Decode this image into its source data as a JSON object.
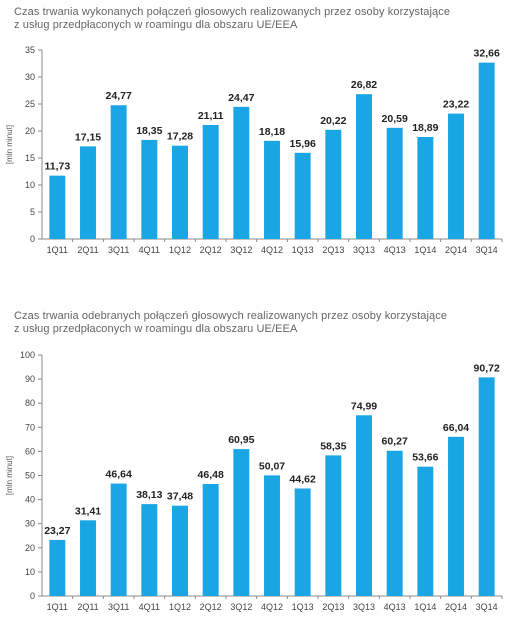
{
  "colors": {
    "bar": "#1aa6e4",
    "axis": "#888888",
    "text": "#444444"
  },
  "chart_data": [
    {
      "type": "bar",
      "title": "Czas trwania wykonanych połączeń głosowych realizowanych przez osoby korzystające\nz usług przedpłaconych w roamingu dla obszaru UE/EEA",
      "xlabel": "",
      "ylabel": "[mln minut]",
      "categories": [
        "1Q11",
        "2Q11",
        "3Q11",
        "4Q11",
        "1Q12",
        "2Q12",
        "3Q12",
        "4Q12",
        "1Q13",
        "2Q13",
        "3Q13",
        "4Q13",
        "1Q14",
        "2Q14",
        "3Q14"
      ],
      "values": [
        11.73,
        17.15,
        24.77,
        18.35,
        17.28,
        21.11,
        24.47,
        18.18,
        15.96,
        20.22,
        26.82,
        20.59,
        18.89,
        23.22,
        32.66
      ],
      "value_labels": [
        "11,73",
        "17,15",
        "24,77",
        "18,35",
        "17,28",
        "21,11",
        "24,47",
        "18,18",
        "15,96",
        "20,22",
        "26,82",
        "20,59",
        "18,89",
        "23,22",
        "32,66"
      ],
      "ylim": [
        0,
        35
      ],
      "yticks": [
        "0",
        "5",
        "10",
        "15",
        "20",
        "25",
        "30",
        "35"
      ],
      "grid": false,
      "legend": "none"
    },
    {
      "type": "bar",
      "title": "Czas trwania odebranych połączeń głosowych realizowanych przez osoby korzystające\nz usług przedpłaconych w roamingu dla obszaru UE/EEA",
      "xlabel": "",
      "ylabel": "[mln minut]",
      "categories": [
        "1Q11",
        "2Q11",
        "3Q11",
        "4Q11",
        "1Q12",
        "2Q12",
        "3Q12",
        "4Q12",
        "1Q13",
        "2Q13",
        "3Q13",
        "4Q13",
        "1Q14",
        "2Q14",
        "3Q14"
      ],
      "values": [
        23.27,
        31.41,
        46.64,
        38.13,
        37.48,
        46.48,
        60.95,
        50.07,
        44.62,
        58.35,
        74.99,
        60.27,
        53.66,
        66.04,
        90.72
      ],
      "value_labels": [
        "23,27",
        "31,41",
        "46,64",
        "38,13",
        "37,48",
        "46,48",
        "60,95",
        "50,07",
        "44,62",
        "58,35",
        "74,99",
        "60,27",
        "53,66",
        "66,04",
        "90,72"
      ],
      "ylim": [
        0,
        100
      ],
      "yticks": [
        "0",
        "10",
        "20",
        "30",
        "40",
        "50",
        "60",
        "70",
        "80",
        "90",
        "100"
      ],
      "grid": false,
      "legend": "none"
    }
  ]
}
